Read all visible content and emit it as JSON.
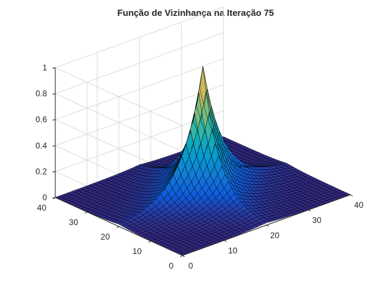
{
  "chart_data": {
    "type": "surface",
    "title": "Função de Vizinhança na Iteração 75",
    "xlabel": "",
    "ylabel": "",
    "zlabel": "",
    "x_range": [
      0,
      40
    ],
    "y_range": [
      0,
      40
    ],
    "z_range": [
      0,
      1
    ],
    "x_ticks": [
      "0",
      "10",
      "20",
      "30",
      "40"
    ],
    "y_ticks": [
      "0",
      "10",
      "20",
      "30",
      "40"
    ],
    "z_ticks": [
      "0",
      "0.2",
      "0.4",
      "0.6",
      "0.8",
      "1"
    ],
    "grid": true,
    "colormap": "parula",
    "peak": {
      "x": 20,
      "y": 20,
      "z": 1
    },
    "grid_size": 40,
    "colors": {
      "axis": "#262626",
      "grid": "#dcdcdc",
      "edge": "#000000"
    }
  }
}
